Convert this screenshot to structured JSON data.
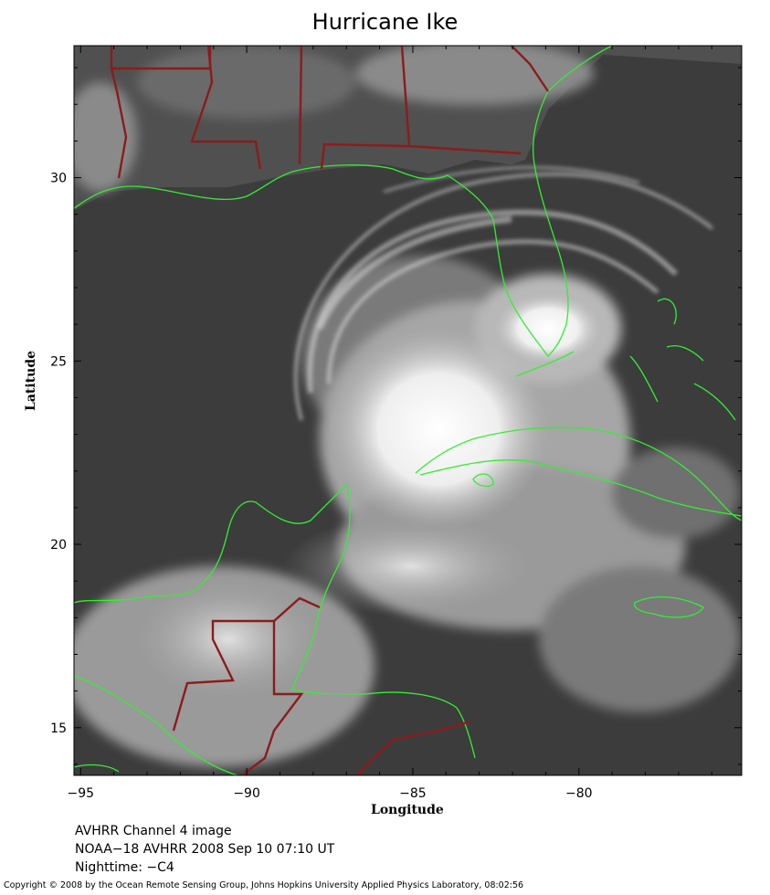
{
  "title": "Hurricane Ike",
  "axes": {
    "xlabel": "Longitude",
    "ylabel": "Latitude",
    "x_ticks": [
      "−95",
      "−90",
      "−85",
      "−80"
    ],
    "y_ticks": [
      "30",
      "25",
      "20",
      "15"
    ],
    "x_tick_values": [
      -95,
      -90,
      -85,
      -80
    ],
    "y_tick_values": [
      30,
      25,
      20,
      15
    ],
    "xlim": [
      -95.2,
      -75.1
    ],
    "ylim": [
      13.7,
      33.6
    ]
  },
  "info_lines": [
    "AVHRR Channel 4 image",
    "NOAA−18 AVHRR 2008 Sep 10 07:10 UT",
    "Nighttime: −C4"
  ],
  "copyright": "Copyright © 2008 by the Ocean Remote Sensing Group, Johns Hopkins University Applied Physics Laboratory, 08:02:56",
  "colors": {
    "coastline": "#33ee33",
    "borders": "#8b1c1c",
    "background": "#3c3c3c"
  }
}
